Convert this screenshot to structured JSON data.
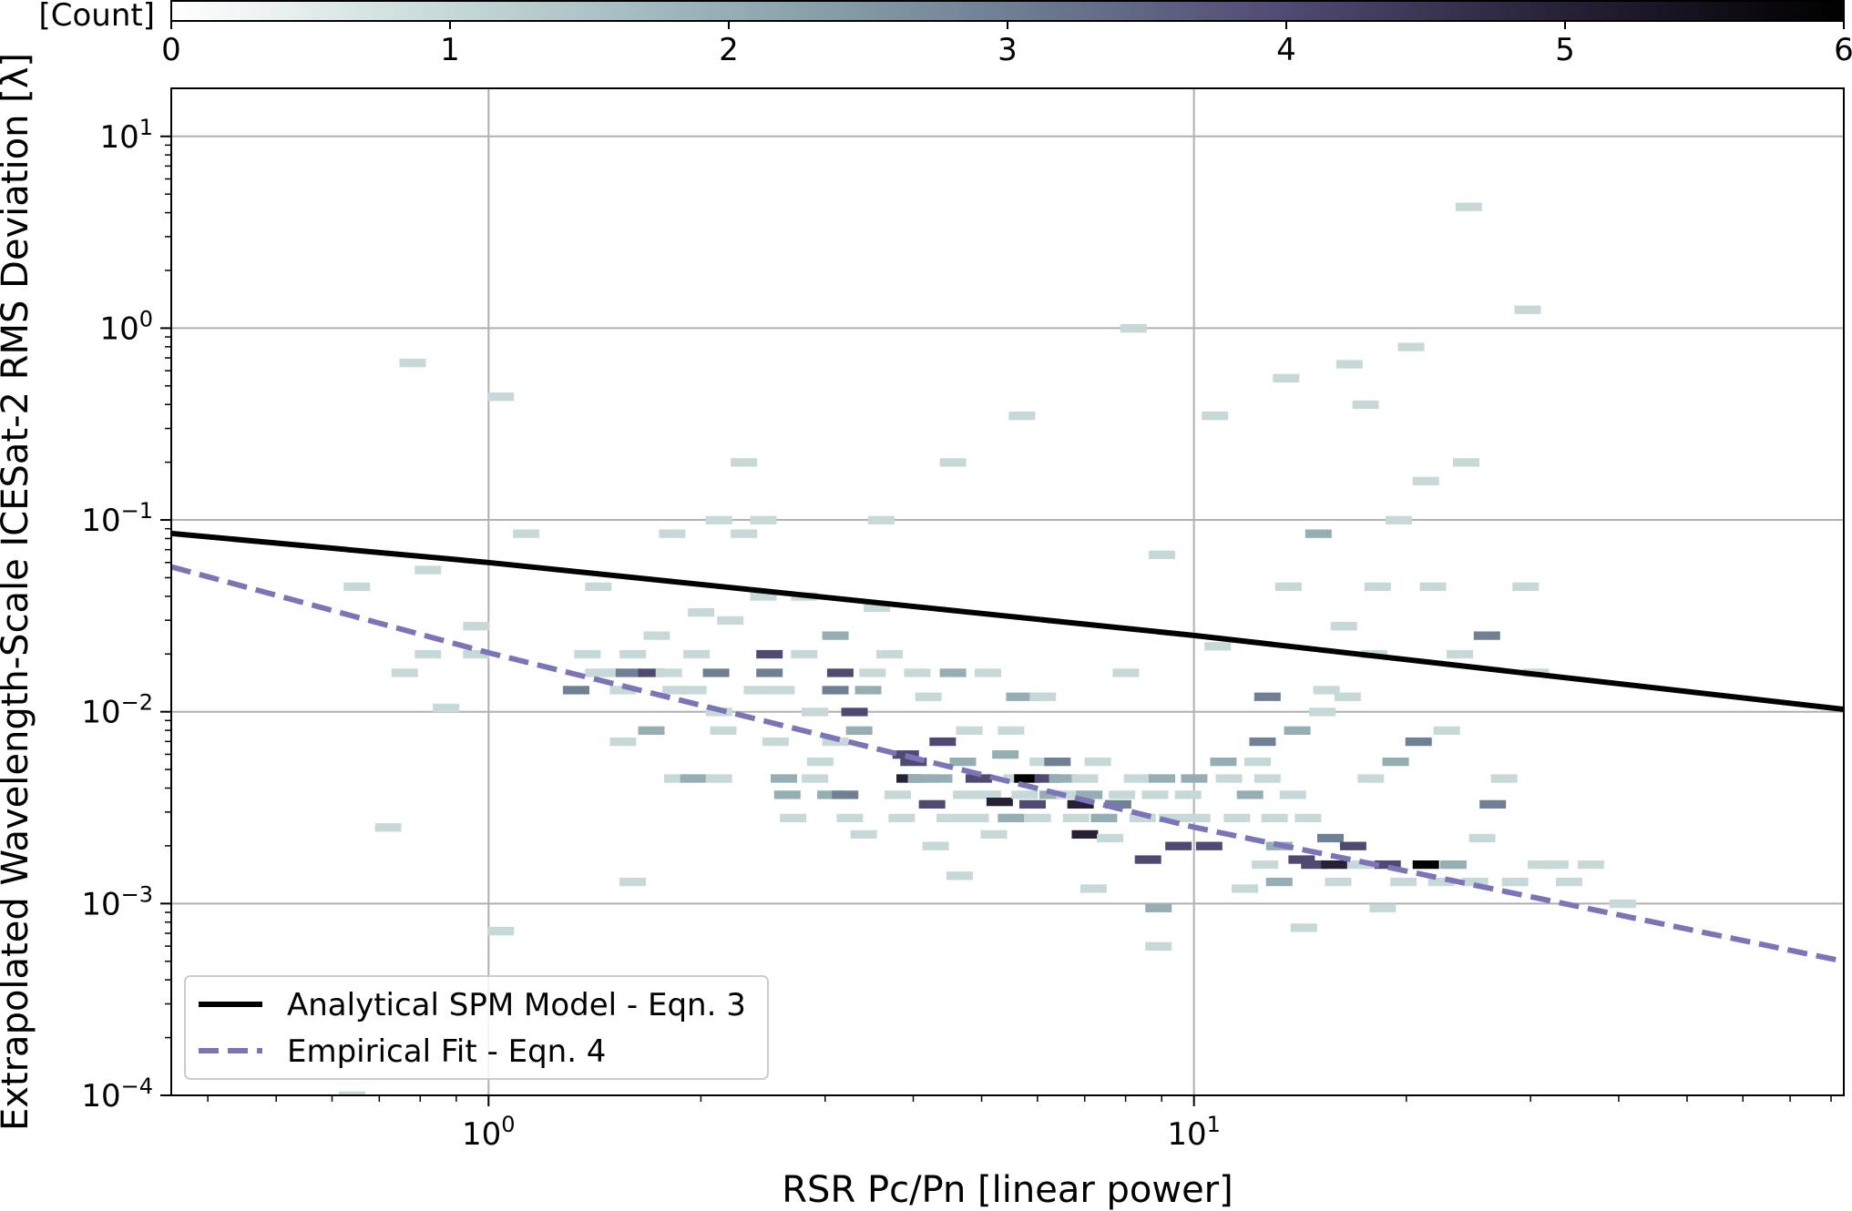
{
  "chart_data": {
    "type": "heatmap",
    "title": "",
    "xlabel": "RSR Pc/Pn [linear power]",
    "ylabel": "Extrapolated Wavelength-Scale ICESat-2 RMS Deviation [λ]",
    "x_scale": "log",
    "y_scale": "log",
    "xlim": [
      0.355,
      83.4
    ],
    "ylim": [
      0.0001,
      17.8
    ],
    "x_ticks": [
      {
        "value": 1,
        "base": "10",
        "exp": "0"
      },
      {
        "value": 10,
        "base": "10",
        "exp": "1"
      }
    ],
    "y_ticks": [
      {
        "value": 10,
        "base": "10",
        "exp": "1"
      },
      {
        "value": 1,
        "base": "10",
        "exp": "0"
      },
      {
        "value": 0.1,
        "base": "10",
        "exp": "−1"
      },
      {
        "value": 0.01,
        "base": "10",
        "exp": "−2"
      },
      {
        "value": 0.001,
        "base": "10",
        "exp": "−3"
      },
      {
        "value": 0.0001,
        "base": "10",
        "exp": "−4"
      }
    ],
    "grid": true,
    "colorbar": {
      "label": "[Count]",
      "range": [
        0,
        6
      ],
      "ticks": [
        "0",
        "1",
        "2",
        "3",
        "4",
        "5",
        "6"
      ],
      "colors": [
        "#ffffff",
        "#c6d8d8",
        "#94aeb4",
        "#6f7f94",
        "#4f4a72",
        "#282037",
        "#000000"
      ]
    },
    "bin_size_log10": [
      0.0368,
      0.0417
    ],
    "cells": [
      [
        0.64,
        0.0001,
        1
      ],
      [
        0.65,
        0.045,
        1
      ],
      [
        0.72,
        0.0025,
        1
      ],
      [
        0.76,
        0.016,
        1
      ],
      [
        0.78,
        0.66,
        1
      ],
      [
        0.82,
        0.02,
        1
      ],
      [
        0.82,
        0.055,
        1
      ],
      [
        0.87,
        0.0105,
        1
      ],
      [
        0.96,
        0.02,
        1
      ],
      [
        0.96,
        0.028,
        1
      ],
      [
        1.04,
        0.00072,
        1
      ],
      [
        1.04,
        0.44,
        1
      ],
      [
        1.13,
        0.085,
        1
      ],
      [
        1.33,
        0.013,
        3
      ],
      [
        1.43,
        0.016,
        1
      ],
      [
        1.38,
        0.02,
        1
      ],
      [
        1.43,
        0.045,
        1
      ],
      [
        1.5,
        0.016,
        1
      ],
      [
        1.55,
        0.007,
        1
      ],
      [
        1.55,
        0.013,
        1
      ],
      [
        1.58,
        0.016,
        3
      ],
      [
        1.6,
        0.02,
        1
      ],
      [
        1.6,
        0.0013,
        1
      ],
      [
        1.7,
        0.016,
        4
      ],
      [
        1.73,
        0.025,
        1
      ],
      [
        1.7,
        0.008,
        2
      ],
      [
        1.85,
        0.0045,
        1
      ],
      [
        1.8,
        0.016,
        1
      ],
      [
        1.84,
        0.013,
        1
      ],
      [
        1.82,
        0.085,
        1
      ],
      [
        1.95,
        0.0045,
        2
      ],
      [
        1.95,
        0.013,
        1
      ],
      [
        1.97,
        0.02,
        1
      ],
      [
        2.0,
        0.033,
        1
      ],
      [
        2.1,
        0.016,
        3
      ],
      [
        2.12,
        0.01,
        1
      ],
      [
        2.12,
        0.0045,
        1
      ],
      [
        2.12,
        0.1,
        1
      ],
      [
        2.2,
        0.03,
        1
      ],
      [
        2.15,
        0.008,
        1
      ],
      [
        2.3,
        0.2,
        1
      ],
      [
        2.3,
        0.085,
        1
      ],
      [
        2.4,
        0.013,
        1
      ],
      [
        2.45,
        0.04,
        1
      ],
      [
        2.45,
        0.1,
        1
      ],
      [
        2.5,
        0.02,
        4
      ],
      [
        2.5,
        0.016,
        3
      ],
      [
        2.55,
        0.007,
        1
      ],
      [
        2.6,
        0.013,
        1
      ],
      [
        2.62,
        0.0045,
        2
      ],
      [
        2.65,
        0.0037,
        2
      ],
      [
        2.7,
        0.0028,
        1
      ],
      [
        2.8,
        0.02,
        1
      ],
      [
        2.8,
        0.04,
        1
      ],
      [
        2.9,
        0.01,
        1
      ],
      [
        2.9,
        0.0045,
        1
      ],
      [
        2.95,
        0.0055,
        1
      ],
      [
        3.05,
        0.0037,
        2
      ],
      [
        3.1,
        0.007,
        1
      ],
      [
        3.1,
        0.013,
        3
      ],
      [
        3.15,
        0.016,
        4
      ],
      [
        3.1,
        0.025,
        2
      ],
      [
        3.25,
        0.0028,
        1
      ],
      [
        3.2,
        0.0037,
        3
      ],
      [
        3.3,
        0.01,
        4
      ],
      [
        3.35,
        0.008,
        2
      ],
      [
        3.4,
        0.0023,
        1
      ],
      [
        3.45,
        0.013,
        2
      ],
      [
        3.5,
        0.016,
        1
      ],
      [
        3.55,
        0.035,
        1
      ],
      [
        3.6,
        0.1,
        1
      ],
      [
        3.7,
        0.02,
        1
      ],
      [
        3.8,
        0.0037,
        1
      ],
      [
        3.85,
        0.0028,
        1
      ],
      [
        3.9,
        0.006,
        4
      ],
      [
        3.95,
        0.0045,
        5
      ],
      [
        4.0,
        0.0055,
        4
      ],
      [
        4.1,
        0.0045,
        2
      ],
      [
        4.05,
        0.016,
        1
      ],
      [
        4.2,
        0.012,
        1
      ],
      [
        4.25,
        0.0033,
        4
      ],
      [
        4.3,
        0.002,
        1
      ],
      [
        4.35,
        0.0045,
        2
      ],
      [
        4.4,
        0.007,
        4
      ],
      [
        4.5,
        0.0028,
        1
      ],
      [
        4.55,
        0.016,
        2
      ],
      [
        4.55,
        0.2,
        1
      ],
      [
        4.65,
        0.0014,
        1
      ],
      [
        4.7,
        0.0055,
        2
      ],
      [
        4.75,
        0.0037,
        1
      ],
      [
        4.8,
        0.008,
        1
      ],
      [
        4.9,
        0.0028,
        1
      ],
      [
        4.95,
        0.0045,
        4
      ],
      [
        5.1,
        0.0037,
        1
      ],
      [
        5.1,
        0.016,
        1
      ],
      [
        5.2,
        0.0023,
        1
      ],
      [
        5.3,
        0.0034,
        5
      ],
      [
        5.4,
        0.006,
        2
      ],
      [
        5.5,
        0.008,
        1
      ],
      [
        5.5,
        0.0028,
        2
      ],
      [
        5.6,
        0.0045,
        1
      ],
      [
        5.65,
        0.012,
        2
      ],
      [
        5.7,
        0.35,
        1
      ],
      [
        5.75,
        0.0037,
        1
      ],
      [
        5.8,
        0.0045,
        6
      ],
      [
        5.9,
        0.0033,
        4
      ],
      [
        6.0,
        0.0028,
        1
      ],
      [
        6.1,
        0.0055,
        1
      ],
      [
        6.1,
        0.012,
        1
      ],
      [
        6.2,
        0.0045,
        4
      ],
      [
        6.3,
        0.0037,
        2
      ],
      [
        6.4,
        0.0055,
        3
      ],
      [
        6.5,
        0.0045,
        2
      ],
      [
        6.65,
        0.0037,
        1
      ],
      [
        6.8,
        0.0028,
        1
      ],
      [
        6.9,
        0.0033,
        5
      ],
      [
        7.0,
        0.0023,
        5
      ],
      [
        7.0,
        0.0045,
        1
      ],
      [
        7.1,
        0.0037,
        2
      ],
      [
        7.2,
        0.0012,
        1
      ],
      [
        7.3,
        0.0055,
        1
      ],
      [
        7.45,
        0.0028,
        2
      ],
      [
        7.6,
        0.0022,
        1
      ],
      [
        7.8,
        0.0033,
        3
      ],
      [
        7.9,
        0.0037,
        1
      ],
      [
        8.0,
        0.016,
        1
      ],
      [
        8.2,
        1.0,
        1
      ],
      [
        8.3,
        0.0045,
        1
      ],
      [
        8.45,
        0.0028,
        1
      ],
      [
        8.6,
        0.0017,
        4
      ],
      [
        8.8,
        0.0037,
        1
      ],
      [
        8.9,
        0.00095,
        2
      ],
      [
        8.9,
        0.0006,
        1
      ],
      [
        9.0,
        0.0045,
        2
      ],
      [
        9.0,
        0.066,
        1
      ],
      [
        9.3,
        0.0028,
        1
      ],
      [
        9.5,
        0.002,
        4
      ],
      [
        9.8,
        0.0037,
        1
      ],
      [
        10.0,
        0.0045,
        2
      ],
      [
        10.1,
        0.0028,
        1
      ],
      [
        10.5,
        0.002,
        4
      ],
      [
        10.7,
        0.35,
        1
      ],
      [
        10.8,
        0.022,
        1
      ],
      [
        11.0,
        0.0055,
        2
      ],
      [
        11.2,
        0.0045,
        1
      ],
      [
        11.5,
        0.0028,
        1
      ],
      [
        11.8,
        0.0012,
        1
      ],
      [
        12.0,
        0.0037,
        2
      ],
      [
        12.3,
        0.0055,
        1
      ],
      [
        12.5,
        0.007,
        3
      ],
      [
        12.6,
        0.0016,
        1
      ],
      [
        12.7,
        0.012,
        3
      ],
      [
        12.7,
        0.0045,
        1
      ],
      [
        13.0,
        0.0028,
        1
      ],
      [
        13.2,
        0.002,
        2
      ],
      [
        13.2,
        0.0013,
        2
      ],
      [
        13.5,
        0.55,
        1
      ],
      [
        13.6,
        0.045,
        1
      ],
      [
        13.8,
        0.0037,
        1
      ],
      [
        14.0,
        0.008,
        2
      ],
      [
        14.2,
        0.0017,
        4
      ],
      [
        14.3,
        0.00075,
        1
      ],
      [
        14.5,
        0.0028,
        1
      ],
      [
        14.8,
        0.0016,
        4
      ],
      [
        15.0,
        0.085,
        2
      ],
      [
        15.2,
        0.01,
        1
      ],
      [
        15.4,
        0.013,
        1
      ],
      [
        15.6,
        0.0022,
        3
      ],
      [
        15.8,
        0.0016,
        5
      ],
      [
        16.0,
        0.0013,
        1
      ],
      [
        16.3,
        0.028,
        1
      ],
      [
        16.5,
        0.012,
        1
      ],
      [
        16.6,
        0.65,
        1
      ],
      [
        16.8,
        0.002,
        4
      ],
      [
        17.2,
        0.0016,
        1
      ],
      [
        17.5,
        0.4,
        1
      ],
      [
        17.8,
        0.0045,
        1
      ],
      [
        18.0,
        0.02,
        1
      ],
      [
        18.2,
        0.045,
        1
      ],
      [
        18.5,
        0.00095,
        1
      ],
      [
        18.8,
        0.0016,
        4
      ],
      [
        19.3,
        0.0055,
        2
      ],
      [
        19.5,
        0.1,
        1
      ],
      [
        19.8,
        0.0013,
        1
      ],
      [
        20.3,
        0.8,
        1
      ],
      [
        20.8,
        0.007,
        3
      ],
      [
        21.3,
        0.0016,
        6
      ],
      [
        21.3,
        0.16,
        1
      ],
      [
        21.8,
        0.045,
        1
      ],
      [
        22.4,
        0.0013,
        1
      ],
      [
        22.8,
        0.008,
        1
      ],
      [
        23.3,
        0.0016,
        2
      ],
      [
        23.8,
        0.02,
        1
      ],
      [
        24.3,
        0.2,
        1
      ],
      [
        24.5,
        4.3,
        1
      ],
      [
        25.0,
        0.0013,
        1
      ],
      [
        25.6,
        0.0022,
        1
      ],
      [
        26.0,
        0.025,
        3
      ],
      [
        26.5,
        0.0033,
        3
      ],
      [
        27.5,
        0.0045,
        1
      ],
      [
        28.5,
        0.0013,
        1
      ],
      [
        29.5,
        0.045,
        1
      ],
      [
        29.7,
        1.25,
        1
      ],
      [
        30.5,
        0.016,
        1
      ],
      [
        31.0,
        0.0016,
        1
      ],
      [
        32.5,
        0.0016,
        1
      ],
      [
        34.0,
        0.0013,
        1
      ],
      [
        36.5,
        0.0016,
        1
      ],
      [
        40.5,
        0.001,
        1
      ]
    ],
    "series": [
      {
        "name": "Analytical SPM Model - Eqn. 3",
        "style": "solid",
        "color": "#000000",
        "x": [
          0.355,
          1,
          10,
          83.4
        ],
        "y": [
          0.085,
          0.06,
          0.025,
          0.0103
        ]
      },
      {
        "name": "Empirical Fit - Eqn. 4",
        "style": "dashed",
        "color": "#7b75b8",
        "x": [
          0.355,
          1,
          10,
          83.4
        ],
        "y": [
          0.057,
          0.0203,
          0.0025,
          0.0005
        ]
      }
    ],
    "legend_position": "lower-left"
  }
}
